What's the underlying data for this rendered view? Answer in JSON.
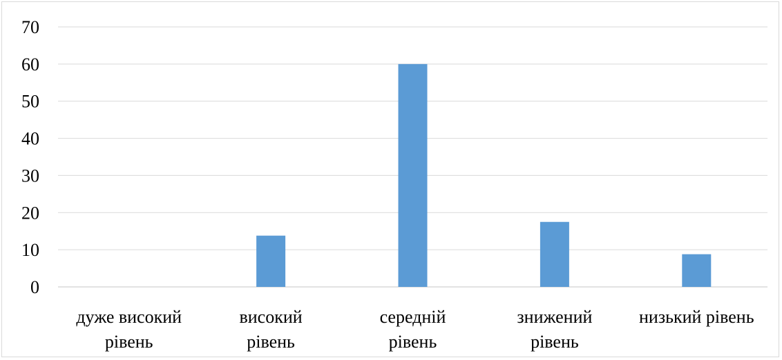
{
  "chart_data": {
    "type": "bar",
    "categories": [
      [
        "дуже високий",
        "рівень"
      ],
      [
        "високий",
        "рівень"
      ],
      [
        "середній",
        "рівень"
      ],
      [
        "знижений",
        "рівень"
      ],
      [
        "низький рівень"
      ]
    ],
    "values": [
      0,
      13.8,
      60,
      17.5,
      8.8
    ],
    "title": "",
    "xlabel": "",
    "ylabel": "",
    "ylim": [
      0,
      70
    ],
    "yticks": [
      "0",
      "10",
      "20",
      "30",
      "40",
      "50",
      "60",
      "70"
    ],
    "grid": true,
    "legend": "none",
    "bar_color": "#5B9BD5",
    "grid_color": "#d9d9d9"
  }
}
